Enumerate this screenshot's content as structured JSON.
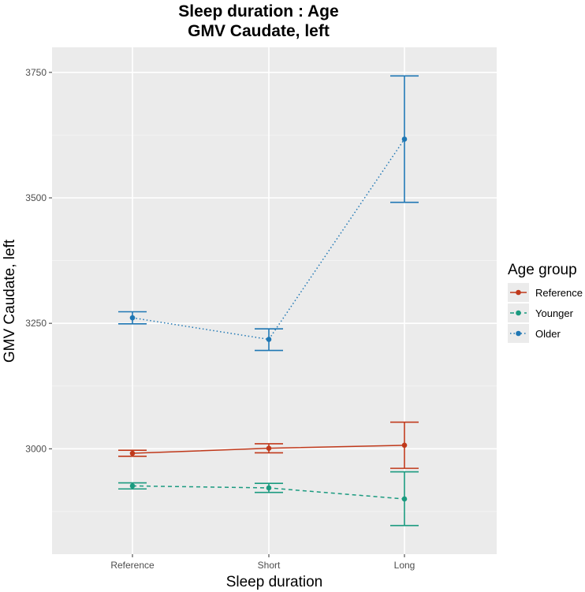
{
  "chart_data": {
    "type": "line",
    "title": "Sleep duration : Age",
    "subtitle": "GMV Caudate, left",
    "xlabel": "Sleep duration",
    "ylabel": "GMV Caudate, left",
    "categories": [
      "Reference",
      "Short",
      "Long"
    ],
    "ylim": [
      2790,
      3800
    ],
    "yticks": [
      3000,
      3250,
      3500,
      3750
    ],
    "grid": true,
    "legend": {
      "title": "Age group",
      "position": "right"
    },
    "series": [
      {
        "name": "Reference",
        "color": "#c0391b",
        "linestyle": "solid",
        "values": [
          2991,
          3001,
          3007
        ],
        "lower": [
          2985,
          2992,
          2961
        ],
        "upper": [
          2997,
          3010,
          3053
        ]
      },
      {
        "name": "Younger",
        "color": "#1a9a7f",
        "linestyle": "dashed",
        "values": [
          2926,
          2922,
          2900
        ],
        "lower": [
          2920,
          2913,
          2847
        ],
        "upper": [
          2932,
          2931,
          2954
        ]
      },
      {
        "name": "Older",
        "color": "#1f77b4",
        "linestyle": "dotted",
        "values": [
          3261,
          3218,
          3617
        ],
        "lower": [
          3249,
          3196,
          3491
        ],
        "upper": [
          3273,
          3239,
          3743
        ]
      }
    ]
  }
}
